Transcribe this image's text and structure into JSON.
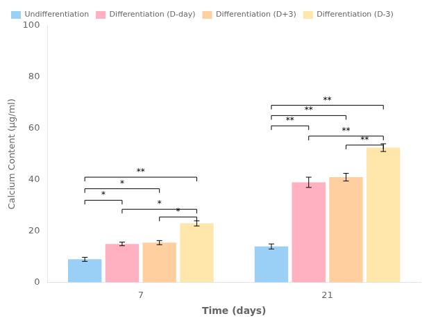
{
  "chart_data": {
    "type": "bar",
    "xlabel": "Time (days)",
    "ylabel": "Calcium Content (μg/ml)",
    "categories": [
      "7",
      "21"
    ],
    "series": [
      {
        "name": "Undifferentiation",
        "values": [
          9.0,
          14.0
        ],
        "errors": [
          0.8,
          1.0
        ]
      },
      {
        "name": "Differentiation (D-day)",
        "values": [
          15.0,
          39.0
        ],
        "errors": [
          0.7,
          2.0
        ]
      },
      {
        "name": "Differentiation (D+3)",
        "values": [
          15.5,
          41.0
        ],
        "errors": [
          0.8,
          1.5
        ]
      },
      {
        "name": "Differentiation (D-3)",
        "values": [
          23.0,
          52.5
        ],
        "errors": [
          1.0,
          1.5
        ]
      }
    ],
    "annotations": [
      {
        "category": "7",
        "series": [
          "Undifferentiation",
          "Differentiation (D-3)"
        ],
        "y": 41.0,
        "label": "**"
      },
      {
        "category": "7",
        "series": [
          "Undifferentiation",
          "Differentiation (D+3)"
        ],
        "y": 36.5,
        "label": "*"
      },
      {
        "category": "7",
        "series": [
          "Undifferentiation",
          "Differentiation (D-day)"
        ],
        "y": 32.0,
        "label": "*"
      },
      {
        "category": "7",
        "series": [
          "Differentiation (D-day)",
          "Differentiation (D-3)"
        ],
        "y": 28.5,
        "label": "*"
      },
      {
        "category": "7",
        "series": [
          "Differentiation (D+3)",
          "Differentiation (D-3)"
        ],
        "y": 25.5,
        "label": "*"
      },
      {
        "category": "21",
        "series": [
          "Undifferentiation",
          "Differentiation (D-3)"
        ],
        "y": 69.0,
        "label": "**"
      },
      {
        "category": "21",
        "series": [
          "Undifferentiation",
          "Differentiation (D+3)"
        ],
        "y": 65.0,
        "label": "**"
      },
      {
        "category": "21",
        "series": [
          "Undifferentiation",
          "Differentiation (D-day)"
        ],
        "y": 61.0,
        "label": "**"
      },
      {
        "category": "21",
        "series": [
          "Differentiation (D-day)",
          "Differentiation (D-3)"
        ],
        "y": 57.0,
        "label": "**"
      },
      {
        "category": "21",
        "series": [
          "Differentiation (D+3)",
          "Differentiation (D-3)"
        ],
        "y": 53.5,
        "label": "**"
      }
    ],
    "ylim": [
      0,
      100
    ],
    "yticks": [
      0,
      20,
      40,
      60,
      80,
      100
    ],
    "grid": false,
    "legend": "upper left"
  }
}
